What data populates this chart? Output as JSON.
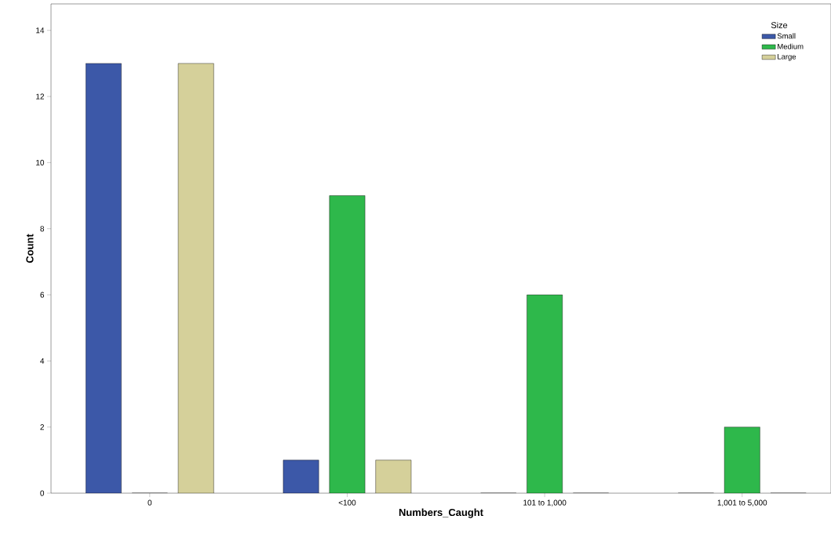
{
  "chart_data": {
    "type": "bar",
    "xlabel": "Numbers_Caught",
    "ylabel": "Count",
    "legend_title": "Size",
    "legend": "top right",
    "categories": [
      "0",
      "<100",
      "101 to 1,000",
      "1,001 to 5,000"
    ],
    "series": [
      {
        "name": "Small",
        "color": "#3c58a8",
        "values": [
          13,
          1,
          0,
          0
        ]
      },
      {
        "name": "Medium",
        "color": "#2eb84b",
        "values": [
          0,
          9,
          6,
          2
        ]
      },
      {
        "name": "Large",
        "color": "#d5d09a",
        "values": [
          13,
          1,
          0,
          0
        ]
      }
    ],
    "ylim": [
      0,
      14.8
    ],
    "yticks": [
      0,
      2,
      4,
      6,
      8,
      10,
      12,
      14
    ],
    "grid": false
  }
}
